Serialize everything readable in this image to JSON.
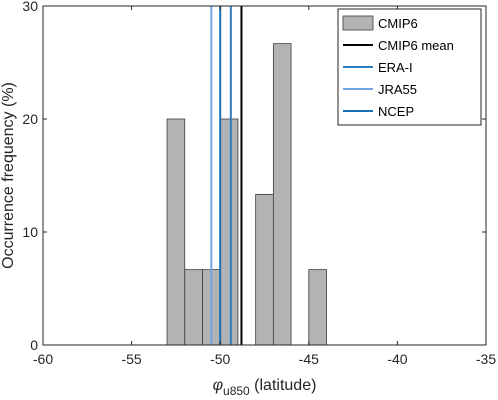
{
  "chart_data": {
    "type": "bar",
    "title": "",
    "xlabel_symbol": "φ",
    "xlabel_subscript": "u850",
    "xlabel_rest": " (latitude)",
    "ylabel": "Occurrence frequency (%)",
    "xlim": [
      -60,
      -35
    ],
    "ylim": [
      0,
      30
    ],
    "xticks": [
      -60,
      -55,
      -50,
      -45,
      -40,
      -35
    ],
    "yticks": [
      0,
      10,
      20,
      30
    ],
    "bin_width": 1,
    "bins": [
      {
        "x0": -53,
        "x1": -52,
        "value": 20
      },
      {
        "x0": -52,
        "x1": -51,
        "value": 6.67
      },
      {
        "x0": -51,
        "x1": -50,
        "value": 6.67
      },
      {
        "x0": -50,
        "x1": -49,
        "value": 20
      },
      {
        "x0": -48,
        "x1": -47,
        "value": 13.33
      },
      {
        "x0": -47,
        "x1": -46,
        "value": 26.67
      },
      {
        "x0": -45,
        "x1": -44,
        "value": 6.67
      }
    ],
    "vlines": [
      {
        "name": "CMIP6 mean",
        "x": -48.8,
        "color": "#000000"
      },
      {
        "name": "ERA-I",
        "x": -49.4,
        "color": "#2f7fbf"
      },
      {
        "name": "JRA55",
        "x": -50.5,
        "color": "#6fa6e0"
      },
      {
        "name": "NCEP",
        "x": -50.0,
        "color": "#1a6fb5"
      }
    ],
    "bar_color": "#b3b3b3",
    "bar_edge": "#3c3c3c",
    "legend": {
      "placement": "top-right",
      "entries": [
        {
          "label": "CMIP6",
          "kind": "patch",
          "color": "#b3b3b3"
        },
        {
          "label": "CMIP6 mean",
          "kind": "line",
          "color": "#000000"
        },
        {
          "label": "ERA-I",
          "kind": "line",
          "color": "#2f7fbf"
        },
        {
          "label": "JRA55",
          "kind": "line",
          "color": "#6fa6e0"
        },
        {
          "label": "NCEP",
          "kind": "line",
          "color": "#1a6fb5"
        }
      ]
    },
    "grid": false
  }
}
